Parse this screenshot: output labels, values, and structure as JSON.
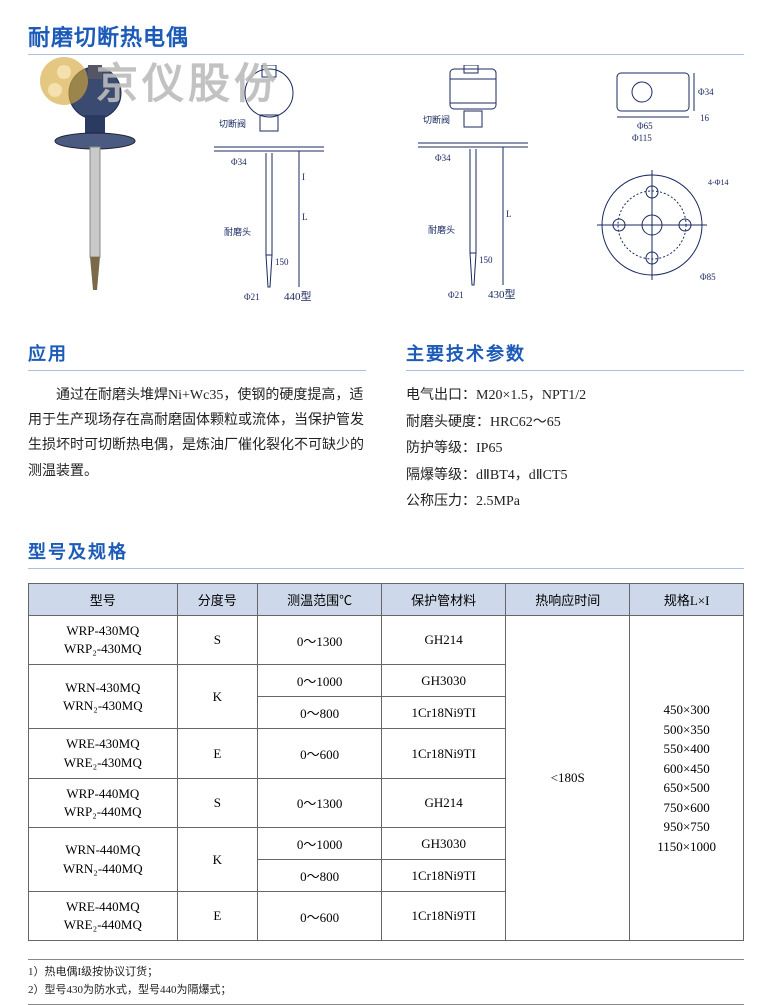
{
  "title": "耐磨切断热电偶",
  "watermark": "京仪股份",
  "figures": {
    "diagram440_label": "440型",
    "diagram430_label": "430型",
    "cutoff_valve_label": "切断阀",
    "wear_head_label": "耐磨头",
    "dim_phi34": "Φ34",
    "dim_phi21": "Φ21",
    "dim_150": "150",
    "dim_phi65": "Φ65",
    "dim_phi115": "Φ115",
    "dim_phi85": "Φ85",
    "dim_4phi14": "4-Φ14",
    "dim_I": "I",
    "dim_L": "L",
    "dim_16": "16"
  },
  "application": {
    "heading": "应用",
    "text": "通过在耐磨头堆焊Ni+Wc35，使钢的硬度提高，适用于生产现场存在高耐磨固体颗粒或流体，当保护管发生损坏时可切断热电偶，是炼油厂催化裂化不可缺少的测温装置。"
  },
  "params": {
    "heading": "主要技术参数",
    "items": [
      "电气出口：M20×1.5，NPT1/2",
      "耐磨头硬度：HRC62～65",
      "防护等级：IP65",
      "隔爆等级：dⅡBT4，dⅡCT5",
      "公称压力：2.5MPa"
    ]
  },
  "spec": {
    "heading": "型号及规格",
    "headers": [
      "型号",
      "分度号",
      "测温范围℃",
      "保护管材料",
      "热响应时间",
      "规格L×I"
    ],
    "rows": [
      {
        "model": "WRP-430MQ\nWRP₂-430MQ",
        "grade": "S",
        "tr": [
          {
            "range": "0～1300",
            "mat": "GH214"
          }
        ]
      },
      {
        "model": "WRN-430MQ\nWRN₂-430MQ",
        "grade": "K",
        "tr": [
          {
            "range": "0～1000",
            "mat": "GH3030"
          },
          {
            "range": "0～800",
            "mat": "1Cr18Ni9TI"
          }
        ]
      },
      {
        "model": "WRE-430MQ\nWRE₂-430MQ",
        "grade": "E",
        "tr": [
          {
            "range": "0～600",
            "mat": "1Cr18Ni9TI"
          }
        ]
      },
      {
        "model": "WRP-440MQ\nWRP₂-440MQ",
        "grade": "S",
        "tr": [
          {
            "range": "0～1300",
            "mat": "GH214"
          }
        ]
      },
      {
        "model": "WRN-440MQ\nWRN₂-440MQ",
        "grade": "K",
        "tr": [
          {
            "range": "0～1000",
            "mat": "GH3030"
          },
          {
            "range": "0～800",
            "mat": "1Cr18Ni9TI"
          }
        ]
      },
      {
        "model": "WRE-440MQ\nWRE₂-440MQ",
        "grade": "E",
        "tr": [
          {
            "range": "0～600",
            "mat": "1Cr18Ni9TI"
          }
        ]
      }
    ],
    "response_time": "<180S",
    "sizes": "450×300\n500×350\n550×400\n600×450\n650×500\n750×600\n950×750\n1150×1000"
  },
  "footnotes": [
    "1）热电偶I级按协议订货；",
    "2）型号430为防水式，型号440为隔爆式；"
  ],
  "colors": {
    "title_blue": "#1d5bb8",
    "rule_blue": "#a9c0e0",
    "table_header_bg": "#cdd9ea",
    "border": "#666666",
    "watermark_gray": "#bcbcbc",
    "watermark_logo": "#d4a93a"
  }
}
